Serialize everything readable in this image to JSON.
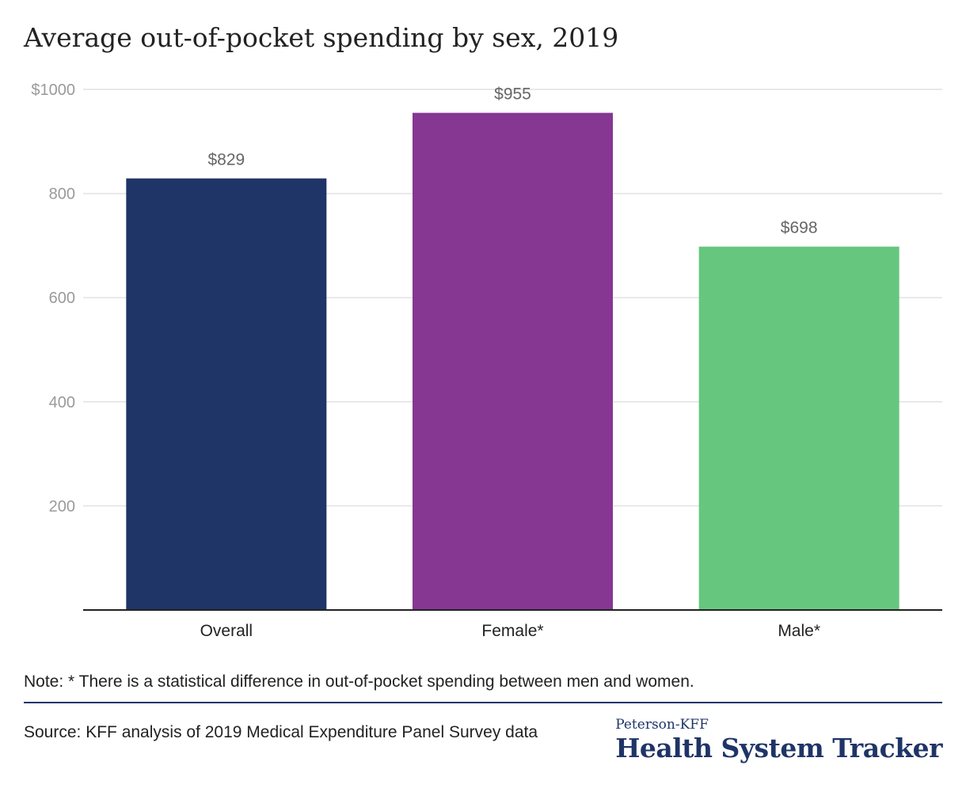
{
  "title": "Average out-of-pocket spending by sex, 2019",
  "chart_data": {
    "type": "bar",
    "title": "Average out-of-pocket spending by sex, 2019",
    "categories": [
      "Overall",
      "Female*",
      "Male*"
    ],
    "values": [
      829,
      955,
      698
    ],
    "data_labels": [
      "$829",
      "$955",
      "$698"
    ],
    "bar_colors": [
      "#1f3467",
      "#853792",
      "#66c67e"
    ],
    "ylim": [
      0,
      1000
    ],
    "yticks": [
      200,
      400,
      600,
      800,
      1000
    ],
    "ytick_labels": [
      "200",
      "400",
      "600",
      "800",
      "$1000"
    ],
    "xlabel": "",
    "ylabel": "",
    "grid": true,
    "legend": "none"
  },
  "note": "Note: * There is a statistical difference in out-of-pocket spending between men and women.",
  "source": "Source: KFF analysis of 2019 Medical Expenditure Panel Survey data",
  "brand": {
    "top": "Peterson-KFF",
    "main": "Health System Tracker"
  }
}
